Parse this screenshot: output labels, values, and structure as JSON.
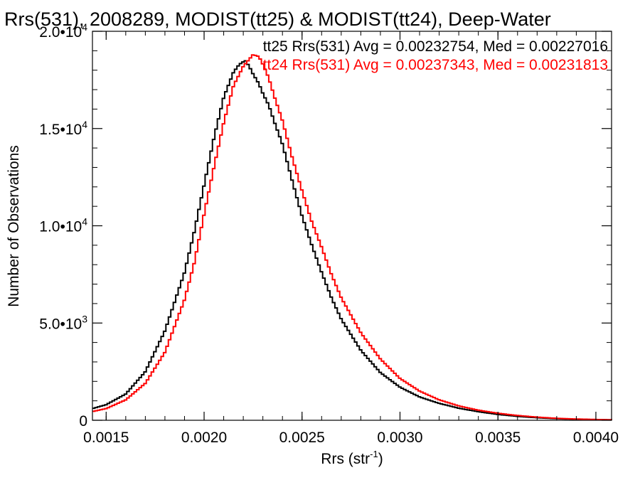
{
  "chart_data": {
    "type": "line",
    "title": "Rrs(531), 2008289, MODIST(tt25) & MODIST(tt24), Deep-Water",
    "xlabel": "Rrs (str",
    "xlabel_exp": "-1",
    "xlabel_close": ")",
    "ylabel": "Number of Observations",
    "xlim": [
      0.00143,
      0.00408
    ],
    "ylim": [
      0,
      20000
    ],
    "x_ticks": [
      {
        "value": 0.0015,
        "label": "0.0015"
      },
      {
        "value": 0.002,
        "label": "0.0020"
      },
      {
        "value": 0.0025,
        "label": "0.0025"
      },
      {
        "value": 0.003,
        "label": "0.0030"
      },
      {
        "value": 0.0035,
        "label": "0.0035"
      },
      {
        "value": 0.004,
        "label": "0.0040"
      }
    ],
    "y_ticks": [
      {
        "value": 0,
        "mant": "0",
        "exp": ""
      },
      {
        "value": 5000,
        "mant": "5.0•10",
        "exp": "3"
      },
      {
        "value": 10000,
        "mant": "1.0•10",
        "exp": "4"
      },
      {
        "value": 15000,
        "mant": "1.5•10",
        "exp": "4"
      },
      {
        "value": 20000,
        "mant": "2.0•10",
        "exp": "4"
      }
    ],
    "grid": false,
    "legend_placement": "top-right",
    "series": [
      {
        "name": "tt25 Rrs(531) Avg = 0.00232754, Med = 0.00227016",
        "color": "#000000",
        "x": [
          0.00143,
          0.0015,
          0.0016,
          0.0017,
          0.0018,
          0.0019,
          0.00195,
          0.002,
          0.00205,
          0.0021,
          0.00215,
          0.00218,
          0.00221,
          0.00223,
          0.00225,
          0.00228,
          0.0023,
          0.00233,
          0.00236,
          0.0024,
          0.00245,
          0.0025,
          0.00255,
          0.0026,
          0.00265,
          0.0027,
          0.0028,
          0.0029,
          0.003,
          0.0031,
          0.0032,
          0.0033,
          0.0034,
          0.0035,
          0.0036,
          0.0037,
          0.0038,
          0.0039,
          0.004,
          0.00408
        ],
        "y": [
          600,
          800,
          1350,
          2500,
          4600,
          7600,
          9700,
          12100,
          14500,
          16600,
          17900,
          18300,
          18500,
          18200,
          17800,
          17300,
          16800,
          16200,
          15300,
          14200,
          12300,
          10500,
          9000,
          7600,
          6300,
          5200,
          3600,
          2450,
          1700,
          1200,
          870,
          620,
          440,
          300,
          200,
          130,
          80,
          50,
          30,
          20
        ]
      },
      {
        "name": "tt24 Rrs(531) Avg = 0.00237343, Med = 0.00231813",
        "color": "#ff0000",
        "x": [
          0.00143,
          0.0015,
          0.0016,
          0.0017,
          0.0018,
          0.0019,
          0.00195,
          0.002,
          0.00205,
          0.0021,
          0.00215,
          0.0022,
          0.00225,
          0.00228,
          0.0023,
          0.00233,
          0.00236,
          0.0024,
          0.00245,
          0.0025,
          0.00255,
          0.0026,
          0.00265,
          0.0027,
          0.0028,
          0.0029,
          0.003,
          0.0031,
          0.0032,
          0.0033,
          0.0034,
          0.0035,
          0.0036,
          0.0037,
          0.0038,
          0.0039,
          0.004,
          0.00408
        ],
        "y": [
          450,
          600,
          1050,
          1900,
          3500,
          6200,
          8100,
          10600,
          13000,
          15300,
          17200,
          18200,
          18800,
          18700,
          18300,
          17600,
          16600,
          15400,
          13500,
          11800,
          10200,
          8900,
          7500,
          6300,
          4500,
          3150,
          2150,
          1500,
          1050,
          740,
          520,
          360,
          245,
          160,
          100,
          65,
          40,
          25
        ]
      }
    ]
  }
}
